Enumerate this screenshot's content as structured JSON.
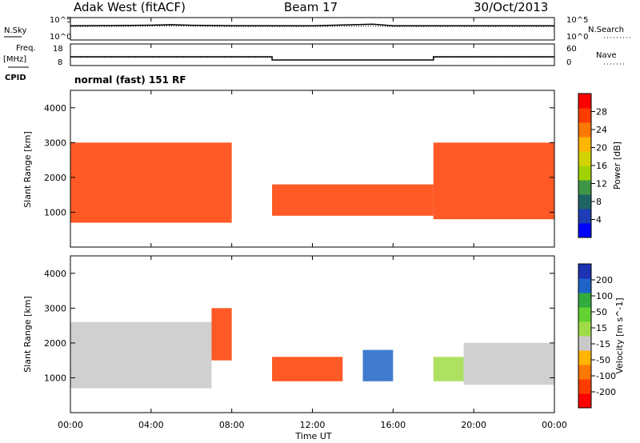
{
  "header": {
    "station": "Adak West (fitACF)",
    "beam": "Beam 17",
    "date": "30/Oct/2013"
  },
  "top_panels": {
    "nsky_label": "N.Sky",
    "nsearch_label": "N.Search",
    "freq_label": "Freq.",
    "freq_unit": "[MHz]",
    "nave_label": "Nave",
    "cpid_label": "CPID",
    "cpid_value": "normal (fast) 151 RF",
    "noise_ticks_left": [
      "10^5",
      "10^0"
    ],
    "noise_ticks_right": [
      "10^5",
      "10^0"
    ],
    "freq_ticks": [
      "18",
      "8"
    ],
    "nave_ticks": [
      "60",
      "0"
    ]
  },
  "colorbars": {
    "power": {
      "label": "Power [dB]",
      "ticks": [
        "28",
        "24",
        "20",
        "16",
        "12",
        "8",
        "4"
      ],
      "colors": [
        "#ff0000",
        "#ff3c00",
        "#ff7800",
        "#ffb400",
        "#d2d200",
        "#a0d200",
        "#3c9646",
        "#1e6464",
        "#1e3cb4",
        "#0000ff"
      ]
    },
    "velocity": {
      "label": "Velocity [m s^-1]",
      "ticks": [
        "200",
        "100",
        "50",
        "15",
        "-15",
        "-50",
        "-100",
        "-200"
      ],
      "colors": [
        "#1e32b4",
        "#1e64c8",
        "#32aa3c",
        "#64d232",
        "#a0dc46",
        "#c8c8c8",
        "#ffb400",
        "#ff7800",
        "#ff3c00",
        "#ff0000"
      ]
    }
  },
  "chart_data": [
    {
      "type": "line",
      "title": "N.Sky / N.Search",
      "x": [
        "00:00",
        "02:00",
        "04:00",
        "05:00",
        "06:00",
        "08:00",
        "12:00",
        "15:00",
        "16:00",
        "20:00",
        "24:00"
      ],
      "series": [
        {
          "name": "N.Sky",
          "values": [
            3000,
            3500,
            4500,
            6000,
            4200,
            3200,
            3000,
            8000,
            3000,
            3000,
            3000
          ]
        },
        {
          "name": "N.Search",
          "values": [
            2000,
            2200,
            2500,
            3000,
            2500,
            2000,
            2000,
            2500,
            2000,
            2000,
            2000
          ]
        }
      ],
      "ylim": [
        1,
        100000
      ],
      "yscale": "log"
    },
    {
      "type": "line",
      "title": "Freq / Nave",
      "x": [
        "00:00",
        "10:00",
        "10:00",
        "18:00",
        "18:00",
        "24:00"
      ],
      "series": [
        {
          "name": "Freq.",
          "values": [
            12.5,
            12.5,
            10.5,
            10.5,
            12.5,
            12.5
          ]
        },
        {
          "name": "Nave",
          "values": [
            25,
            25,
            15,
            15,
            25,
            25
          ]
        }
      ],
      "xlabel": "Time UT"
    },
    {
      "type": "heatmap",
      "title": "Power",
      "xlabel": "Time UT",
      "ylabel": "Slant Range [km]",
      "xlim": [
        0,
        24
      ],
      "ylim": [
        0,
        4500
      ],
      "x_ticks": [
        "00:00",
        "04:00",
        "08:00",
        "12:00",
        "16:00",
        "20:00",
        "00:00"
      ],
      "y_ticks": [
        1000,
        2000,
        3000,
        4000
      ],
      "colorbar": "Power [dB]",
      "clim": [
        0,
        30
      ],
      "echo_regions": [
        {
          "t_start": 0.0,
          "t_end": 8.0,
          "range_km": [
            700,
            3000
          ],
          "peak_power_db": 28
        },
        {
          "t_start": 10.0,
          "t_end": 18.0,
          "range_km": [
            900,
            1800
          ],
          "peak_power_db": 28
        },
        {
          "t_start": 18.0,
          "t_end": 24.0,
          "range_km": [
            800,
            3000
          ],
          "peak_power_db": 28
        }
      ]
    },
    {
      "type": "heatmap",
      "title": "Velocity",
      "xlabel": "Time UT",
      "ylabel": "Slant Range [km]",
      "xlim": [
        0,
        24
      ],
      "ylim": [
        0,
        4500
      ],
      "x_ticks": [
        "00:00",
        "04:00",
        "08:00",
        "12:00",
        "16:00",
        "20:00",
        "00:00"
      ],
      "y_ticks": [
        1000,
        2000,
        3000,
        4000
      ],
      "colorbar": "Velocity [m s^-1]",
      "clim": [
        -200,
        200
      ],
      "echo_regions": [
        {
          "t_start": 0.0,
          "t_end": 7.0,
          "range_km": [
            700,
            2600
          ],
          "velocity": 0
        },
        {
          "t_start": 7.0,
          "t_end": 8.0,
          "range_km": [
            1500,
            3000
          ],
          "velocity": -150
        },
        {
          "t_start": 10.0,
          "t_end": 13.5,
          "range_km": [
            900,
            1600
          ],
          "velocity": -150
        },
        {
          "t_start": 14.5,
          "t_end": 16.0,
          "range_km": [
            900,
            1800
          ],
          "velocity": 150
        },
        {
          "t_start": 18.0,
          "t_end": 19.5,
          "range_km": [
            900,
            1600
          ],
          "velocity": 40
        },
        {
          "t_start": 19.5,
          "t_end": 24.0,
          "range_km": [
            800,
            2000
          ],
          "velocity": 0
        }
      ]
    }
  ]
}
